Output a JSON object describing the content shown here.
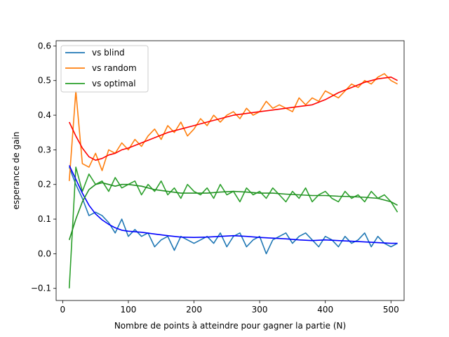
{
  "chart_data": {
    "type": "line",
    "title": "",
    "xlabel": "Nombre de points à atteindre pour gagner la partie (N)",
    "ylabel": "esperance de gain",
    "xlim": [
      -10,
      520
    ],
    "ylim": [
      -0.135,
      0.615
    ],
    "xticks": [
      0,
      100,
      200,
      300,
      400,
      500
    ],
    "yticks": [
      -0.1,
      0.0,
      0.1,
      0.2,
      0.3,
      0.4,
      0.5,
      0.6
    ],
    "xtick_labels": [
      "0",
      "100",
      "200",
      "300",
      "400",
      "500"
    ],
    "ytick_labels": [
      "−0.1",
      "0.0",
      "0.1",
      "0.2",
      "0.3",
      "0.4",
      "0.5",
      "0.6"
    ],
    "grid": false,
    "legend_position": "upper-left",
    "series": [
      {
        "name": "vs blind",
        "color": "#1f77b4",
        "x": [
          10,
          20,
          30,
          40,
          50,
          60,
          70,
          80,
          90,
          100,
          110,
          120,
          130,
          140,
          150,
          160,
          170,
          180,
          190,
          200,
          210,
          220,
          230,
          240,
          250,
          260,
          270,
          280,
          290,
          300,
          310,
          320,
          330,
          340,
          350,
          360,
          370,
          380,
          390,
          400,
          410,
          420,
          430,
          440,
          450,
          460,
          470,
          480,
          490,
          500,
          510
        ],
        "y": [
          0.25,
          0.2,
          0.16,
          0.11,
          0.12,
          0.11,
          0.09,
          0.06,
          0.1,
          0.05,
          0.07,
          0.05,
          0.06,
          0.02,
          0.04,
          0.05,
          0.01,
          0.05,
          0.04,
          0.03,
          0.04,
          0.05,
          0.03,
          0.06,
          0.02,
          0.05,
          0.06,
          0.02,
          0.04,
          0.05,
          0.0,
          0.04,
          0.05,
          0.06,
          0.03,
          0.05,
          0.06,
          0.04,
          0.02,
          0.05,
          0.04,
          0.02,
          0.05,
          0.03,
          0.04,
          0.06,
          0.02,
          0.05,
          0.03,
          0.02,
          0.03
        ]
      },
      {
        "name": "vs random",
        "color": "#ff7f0e",
        "x": [
          10,
          20,
          30,
          40,
          50,
          60,
          70,
          80,
          90,
          100,
          110,
          120,
          130,
          140,
          150,
          160,
          170,
          180,
          190,
          200,
          210,
          220,
          230,
          240,
          250,
          260,
          270,
          280,
          290,
          300,
          310,
          320,
          330,
          340,
          350,
          360,
          370,
          380,
          390,
          400,
          410,
          420,
          430,
          440,
          450,
          460,
          470,
          480,
          490,
          500,
          510
        ],
        "y": [
          0.21,
          0.47,
          0.26,
          0.25,
          0.29,
          0.24,
          0.3,
          0.29,
          0.32,
          0.3,
          0.33,
          0.31,
          0.34,
          0.36,
          0.33,
          0.37,
          0.35,
          0.38,
          0.34,
          0.36,
          0.39,
          0.37,
          0.4,
          0.38,
          0.4,
          0.41,
          0.39,
          0.42,
          0.4,
          0.41,
          0.44,
          0.42,
          0.43,
          0.42,
          0.41,
          0.45,
          0.43,
          0.45,
          0.44,
          0.47,
          0.46,
          0.45,
          0.47,
          0.49,
          0.48,
          0.5,
          0.49,
          0.51,
          0.52,
          0.5,
          0.49
        ]
      },
      {
        "name": "vs optimal",
        "color": "#2ca02c",
        "x": [
          10,
          20,
          30,
          40,
          50,
          60,
          70,
          80,
          90,
          100,
          110,
          120,
          130,
          140,
          150,
          160,
          170,
          180,
          190,
          200,
          210,
          220,
          230,
          240,
          250,
          260,
          270,
          280,
          290,
          300,
          310,
          320,
          330,
          340,
          350,
          360,
          370,
          380,
          390,
          400,
          410,
          420,
          430,
          440,
          450,
          460,
          470,
          480,
          490,
          500,
          510
        ],
        "y": [
          -0.1,
          0.25,
          0.18,
          0.23,
          0.2,
          0.21,
          0.18,
          0.22,
          0.19,
          0.2,
          0.21,
          0.17,
          0.2,
          0.18,
          0.21,
          0.17,
          0.19,
          0.16,
          0.2,
          0.18,
          0.17,
          0.19,
          0.16,
          0.2,
          0.17,
          0.18,
          0.15,
          0.19,
          0.17,
          0.18,
          0.16,
          0.19,
          0.17,
          0.15,
          0.18,
          0.16,
          0.19,
          0.15,
          0.17,
          0.18,
          0.16,
          0.15,
          0.18,
          0.16,
          0.17,
          0.15,
          0.18,
          0.16,
          0.17,
          0.15,
          0.12
        ]
      }
    ],
    "trend_lines": [
      {
        "color": "#0000ff",
        "x": [
          10,
          20,
          30,
          40,
          50,
          60,
          70,
          80,
          90,
          100,
          120,
          140,
          160,
          180,
          200,
          220,
          240,
          260,
          280,
          300,
          320,
          340,
          360,
          380,
          400,
          420,
          440,
          460,
          480,
          500,
          510
        ],
        "y": [
          0.255,
          0.215,
          0.175,
          0.14,
          0.115,
          0.098,
          0.085,
          0.075,
          0.068,
          0.065,
          0.062,
          0.057,
          0.052,
          0.048,
          0.047,
          0.048,
          0.05,
          0.052,
          0.05,
          0.047,
          0.045,
          0.043,
          0.04,
          0.038,
          0.04,
          0.038,
          0.036,
          0.034,
          0.032,
          0.03,
          0.03
        ]
      },
      {
        "color": "#ff0000",
        "x": [
          10,
          20,
          30,
          40,
          50,
          60,
          70,
          80,
          90,
          100,
          120,
          140,
          160,
          180,
          200,
          220,
          240,
          260,
          280,
          300,
          320,
          340,
          360,
          380,
          400,
          420,
          440,
          460,
          480,
          500,
          510
        ],
        "y": [
          0.38,
          0.34,
          0.305,
          0.28,
          0.27,
          0.275,
          0.285,
          0.29,
          0.3,
          0.305,
          0.32,
          0.335,
          0.35,
          0.36,
          0.37,
          0.38,
          0.39,
          0.4,
          0.405,
          0.41,
          0.415,
          0.42,
          0.425,
          0.43,
          0.445,
          0.465,
          0.48,
          0.495,
          0.505,
          0.51,
          0.5
        ]
      },
      {
        "color": "#209020",
        "x": [
          10,
          20,
          30,
          40,
          50,
          60,
          70,
          80,
          90,
          100,
          120,
          140,
          160,
          180,
          200,
          220,
          240,
          260,
          280,
          300,
          320,
          340,
          360,
          380,
          400,
          420,
          440,
          460,
          480,
          500,
          510
        ],
        "y": [
          0.04,
          0.1,
          0.15,
          0.185,
          0.2,
          0.205,
          0.2,
          0.195,
          0.2,
          0.2,
          0.195,
          0.185,
          0.18,
          0.175,
          0.175,
          0.175,
          0.178,
          0.18,
          0.178,
          0.175,
          0.175,
          0.172,
          0.17,
          0.168,
          0.168,
          0.166,
          0.165,
          0.163,
          0.16,
          0.15,
          0.14
        ]
      }
    ]
  }
}
